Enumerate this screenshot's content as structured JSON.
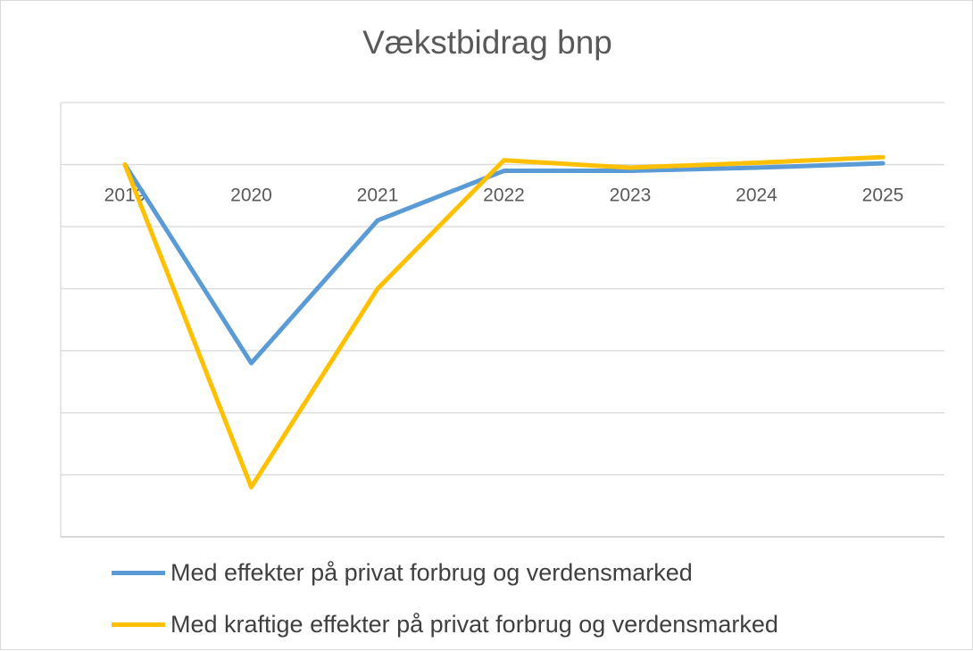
{
  "chart_data": {
    "type": "line",
    "title": "Vækstbidrag bnp",
    "xlabel": "",
    "ylabel": "",
    "categories": [
      "2019",
      "2020",
      "2021",
      "2022",
      "2023",
      "2024",
      "2025"
    ],
    "ylim": [
      -6,
      1
    ],
    "grid": true,
    "legend_position": "bottom",
    "series": [
      {
        "name": "Med effekter på privat forbrug og verdensmarked",
        "color": "#5b9bd5",
        "values": [
          0,
          -3.2,
          -0.9,
          -0.1,
          -0.1,
          -0.05,
          0.02
        ]
      },
      {
        "name": "Med kraftige effekter på privat forbrug og verdensmarked",
        "color": "#ffc000",
        "values": [
          0,
          -5.2,
          -2.0,
          0.07,
          -0.05,
          0.03,
          0.12
        ]
      }
    ]
  }
}
